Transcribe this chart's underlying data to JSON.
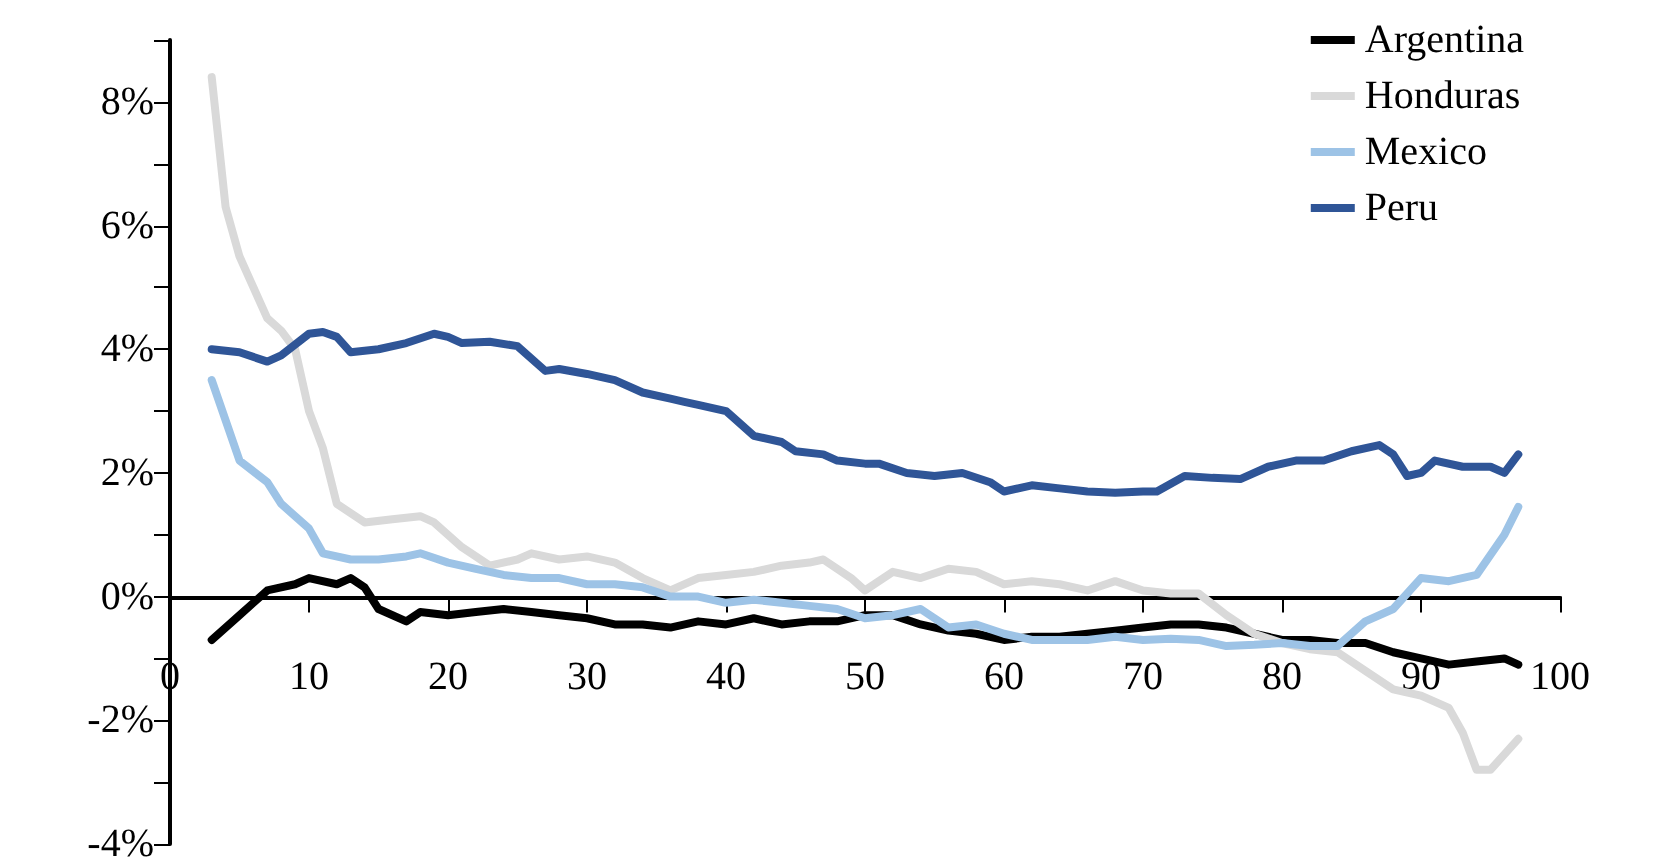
{
  "chart_data": {
    "type": "line",
    "legend": "top right",
    "grid": false,
    "marker": "none",
    "line_style": "solid",
    "xlim": [
      0,
      100
    ],
    "xticks": [
      0,
      10,
      20,
      30,
      40,
      50,
      60,
      70,
      80,
      90,
      100
    ],
    "ylim": [
      -4,
      9
    ],
    "yticks": [
      {
        "value": -4,
        "label": "-4%"
      },
      {
        "value": -3,
        "label": null
      },
      {
        "value": -2,
        "label": "-2%"
      },
      {
        "value": -1,
        "label": null
      },
      {
        "value": 0,
        "label": "0%"
      },
      {
        "value": 1,
        "label": null
      },
      {
        "value": 2,
        "label": "2%"
      },
      {
        "value": 3,
        "label": null
      },
      {
        "value": 4,
        "label": "4%"
      },
      {
        "value": 5,
        "label": null
      },
      {
        "value": 6,
        "label": "6%"
      },
      {
        "value": 7,
        "label": null
      },
      {
        "value": 8,
        "label": "8%"
      },
      {
        "value": 9,
        "label": null
      }
    ],
    "series": [
      {
        "name": "Argentina",
        "color": "#000000",
        "x": [
          3,
          5,
          7,
          9,
          10,
          12,
          13,
          14,
          15,
          17,
          18,
          20,
          22,
          24,
          26,
          28,
          30,
          32,
          34,
          36,
          38,
          40,
          42,
          44,
          46,
          48,
          50,
          52,
          54,
          56,
          58,
          60,
          62,
          64,
          66,
          68,
          70,
          72,
          74,
          76,
          78,
          80,
          82,
          84,
          86,
          88,
          90,
          92,
          94,
          96,
          97
        ],
        "values": [
          -0.7,
          -0.3,
          0.1,
          0.2,
          0.3,
          0.2,
          0.3,
          0.15,
          -0.2,
          -0.4,
          -0.25,
          -0.3,
          -0.25,
          -0.2,
          -0.25,
          -0.3,
          -0.35,
          -0.45,
          -0.45,
          -0.5,
          -0.4,
          -0.45,
          -0.35,
          -0.45,
          -0.4,
          -0.4,
          -0.3,
          -0.3,
          -0.45,
          -0.55,
          -0.6,
          -0.7,
          -0.65,
          -0.65,
          -0.6,
          -0.55,
          -0.5,
          -0.45,
          -0.45,
          -0.5,
          -0.6,
          -0.7,
          -0.7,
          -0.75,
          -0.75,
          -0.9,
          -1.0,
          -1.1,
          -1.05,
          -1.0,
          -1.1
        ]
      },
      {
        "name": "Honduras",
        "color": "#d9d9d9",
        "x": [
          3,
          4,
          5,
          6,
          7,
          8,
          9,
          10,
          11,
          12,
          14,
          16,
          18,
          19,
          21,
          23,
          25,
          26,
          28,
          30,
          32,
          34,
          36,
          38,
          40,
          42,
          44,
          46,
          47,
          49,
          50,
          52,
          54,
          56,
          58,
          60,
          62,
          64,
          66,
          68,
          70,
          72,
          74,
          76,
          78,
          80,
          82,
          84,
          86,
          88,
          90,
          92,
          93,
          94,
          95,
          97
        ],
        "values": [
          8.4,
          6.3,
          5.5,
          5.0,
          4.5,
          4.3,
          4.0,
          3.0,
          2.4,
          1.5,
          1.2,
          1.25,
          1.3,
          1.2,
          0.8,
          0.5,
          0.6,
          0.7,
          0.6,
          0.65,
          0.55,
          0.3,
          0.1,
          0.3,
          0.35,
          0.4,
          0.5,
          0.55,
          0.6,
          0.3,
          0.1,
          0.4,
          0.3,
          0.45,
          0.4,
          0.2,
          0.25,
          0.2,
          0.1,
          0.25,
          0.1,
          0.05,
          0.05,
          -0.3,
          -0.6,
          -0.75,
          -0.85,
          -0.9,
          -1.2,
          -1.5,
          -1.6,
          -1.8,
          -2.2,
          -2.8,
          -2.8,
          -2.3
        ]
      },
      {
        "name": "Mexico",
        "color": "#9dc3e6",
        "x": [
          3,
          5,
          7,
          8,
          10,
          11,
          13,
          15,
          17,
          18,
          20,
          22,
          24,
          26,
          28,
          30,
          32,
          34,
          36,
          38,
          40,
          42,
          44,
          46,
          48,
          50,
          52,
          54,
          56,
          58,
          60,
          62,
          64,
          66,
          68,
          70,
          72,
          74,
          76,
          78,
          80,
          82,
          84,
          86,
          88,
          90,
          92,
          94,
          96,
          97
        ],
        "values": [
          3.5,
          2.2,
          1.85,
          1.5,
          1.1,
          0.7,
          0.6,
          0.6,
          0.65,
          0.7,
          0.55,
          0.45,
          0.35,
          0.3,
          0.3,
          0.2,
          0.2,
          0.15,
          0.0,
          0.0,
          -0.1,
          -0.05,
          -0.1,
          -0.15,
          -0.2,
          -0.35,
          -0.3,
          -0.2,
          -0.5,
          -0.45,
          -0.6,
          -0.7,
          -0.7,
          -0.7,
          -0.65,
          -0.7,
          -0.68,
          -0.7,
          -0.8,
          -0.78,
          -0.75,
          -0.8,
          -0.8,
          -0.4,
          -0.2,
          0.3,
          0.25,
          0.35,
          1.0,
          1.45
        ]
      },
      {
        "name": "Peru",
        "color": "#2f5597",
        "x": [
          3,
          5,
          7,
          8,
          10,
          11,
          12,
          13,
          15,
          17,
          19,
          20,
          21,
          23,
          25,
          27,
          28,
          30,
          32,
          34,
          36,
          37,
          38,
          40,
          42,
          44,
          45,
          47,
          48,
          50,
          51,
          53,
          55,
          57,
          59,
          60,
          62,
          64,
          66,
          68,
          70,
          71,
          73,
          75,
          77,
          79,
          81,
          83,
          85,
          87,
          88,
          89,
          90,
          91,
          93,
          95,
          96,
          97
        ],
        "values": [
          4.0,
          3.95,
          3.8,
          3.9,
          4.25,
          4.28,
          4.2,
          3.95,
          4.0,
          4.1,
          4.25,
          4.2,
          4.1,
          4.12,
          4.05,
          3.65,
          3.68,
          3.6,
          3.5,
          3.3,
          3.2,
          3.15,
          3.1,
          3.0,
          2.6,
          2.5,
          2.35,
          2.3,
          2.2,
          2.15,
          2.15,
          2.0,
          1.95,
          2.0,
          1.85,
          1.7,
          1.8,
          1.75,
          1.7,
          1.68,
          1.7,
          1.7,
          1.95,
          1.92,
          1.9,
          2.1,
          2.2,
          2.2,
          2.35,
          2.45,
          2.3,
          1.95,
          2.0,
          2.2,
          2.1,
          2.1,
          2.0,
          2.3
        ]
      }
    ]
  }
}
